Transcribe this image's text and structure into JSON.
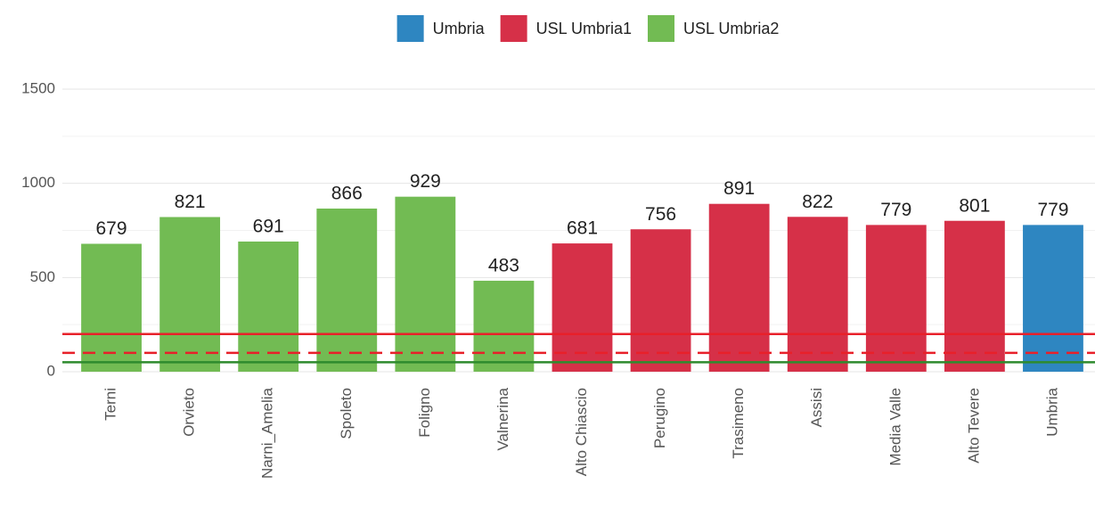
{
  "chart_data": {
    "type": "bar",
    "categories": [
      "Terni",
      "Orvieto",
      "Narni_Amelia",
      "Spoleto",
      "Foligno",
      "Valnerina",
      "Alto Chiascio",
      "Perugino",
      "Trasimeno",
      "Assisi",
      "Media Valle",
      "Alto Tevere",
      "Umbria"
    ],
    "series": [
      {
        "name": "Umbria",
        "color": "#2e86c1",
        "values": [
          null,
          null,
          null,
          null,
          null,
          null,
          null,
          null,
          null,
          null,
          null,
          null,
          779
        ]
      },
      {
        "name": "USL Umbria1",
        "color": "#d63048",
        "values": [
          null,
          null,
          null,
          null,
          null,
          null,
          681,
          756,
          891,
          822,
          779,
          801,
          null
        ]
      },
      {
        "name": "USL Umbria2",
        "color": "#72bb53",
        "values": [
          679,
          821,
          691,
          866,
          929,
          483,
          null,
          null,
          null,
          null,
          null,
          null,
          null
        ]
      }
    ],
    "ylim": [
      0,
      1500
    ],
    "yticks": [
      0,
      500,
      1000,
      1500
    ],
    "minor_yticks": [
      250,
      750,
      1250
    ],
    "grid": true,
    "legend_position": "top",
    "reference_lines": [
      {
        "value": 200,
        "color": "#e8202a",
        "dashed": false
      },
      {
        "value": 100,
        "color": "#e8202a",
        "dashed": true
      },
      {
        "value": 50,
        "color": "#2e8b2e",
        "dashed": false
      }
    ]
  }
}
